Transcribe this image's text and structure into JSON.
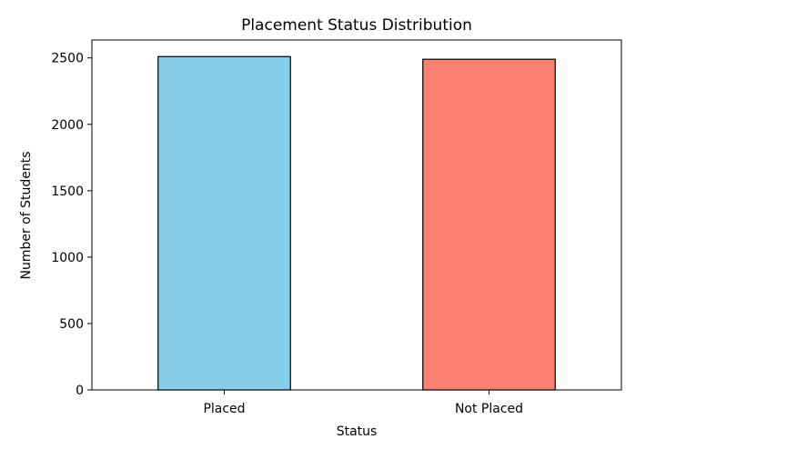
{
  "chart_data": {
    "type": "bar",
    "title": "Placement Status Distribution",
    "xlabel": "Status",
    "ylabel": "Number of Students",
    "categories": [
      "Placed",
      "Not Placed"
    ],
    "values": [
      2510,
      2490
    ],
    "colors": [
      "#87ceeb",
      "#fa8072"
    ],
    "edge_color": "#000000",
    "ylim": [
      0,
      2635
    ],
    "yticks": [
      0,
      500,
      1000,
      1500,
      2000,
      2500
    ],
    "ytick_labels": [
      "0",
      "500",
      "1000",
      "1500",
      "2000",
      "2500"
    ],
    "grid": false,
    "legend": "none"
  }
}
